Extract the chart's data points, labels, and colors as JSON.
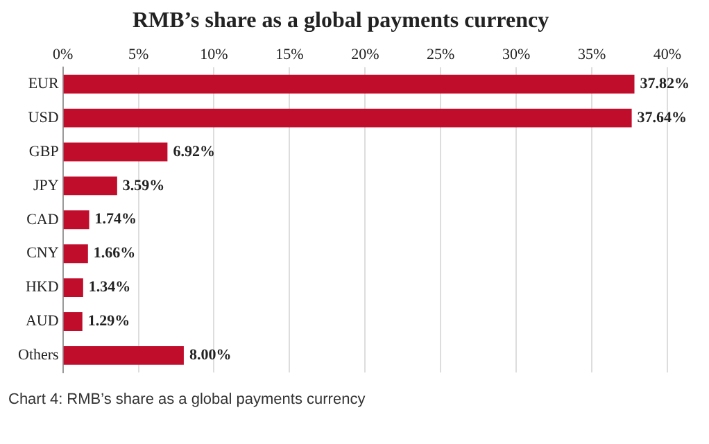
{
  "chart_data": {
    "type": "bar",
    "orientation": "horizontal",
    "title": "RMB’s share as a global payments currency",
    "categories": [
      "EUR",
      "USD",
      "GBP",
      "JPY",
      "CAD",
      "CNY",
      "HKD",
      "AUD",
      "Others"
    ],
    "values": [
      37.82,
      37.64,
      6.92,
      3.59,
      1.74,
      1.66,
      1.34,
      1.29,
      8.0
    ],
    "value_labels": [
      "37.82%",
      "37.64%",
      "6.92%",
      "3.59%",
      "1.74%",
      "1.66%",
      "1.34%",
      "1.29%",
      "8.00%"
    ],
    "color": "#c00d2b",
    "xlim": [
      0,
      40
    ],
    "xticks": [
      {
        "value": 0,
        "label": "0%"
      },
      {
        "value": 5,
        "label": "5%"
      },
      {
        "value": 10,
        "label": "10%"
      },
      {
        "value": 15,
        "label": "15%"
      },
      {
        "value": 20,
        "label": "20%"
      },
      {
        "value": 25,
        "label": "25%"
      },
      {
        "value": 30,
        "label": "30%"
      },
      {
        "value": 35,
        "label": "35%"
      },
      {
        "value": 40,
        "label": "40%"
      }
    ],
    "grid": "x",
    "legend": false,
    "annotations": [
      "Chart 4: RMB’s share as a global payments currency"
    ]
  }
}
